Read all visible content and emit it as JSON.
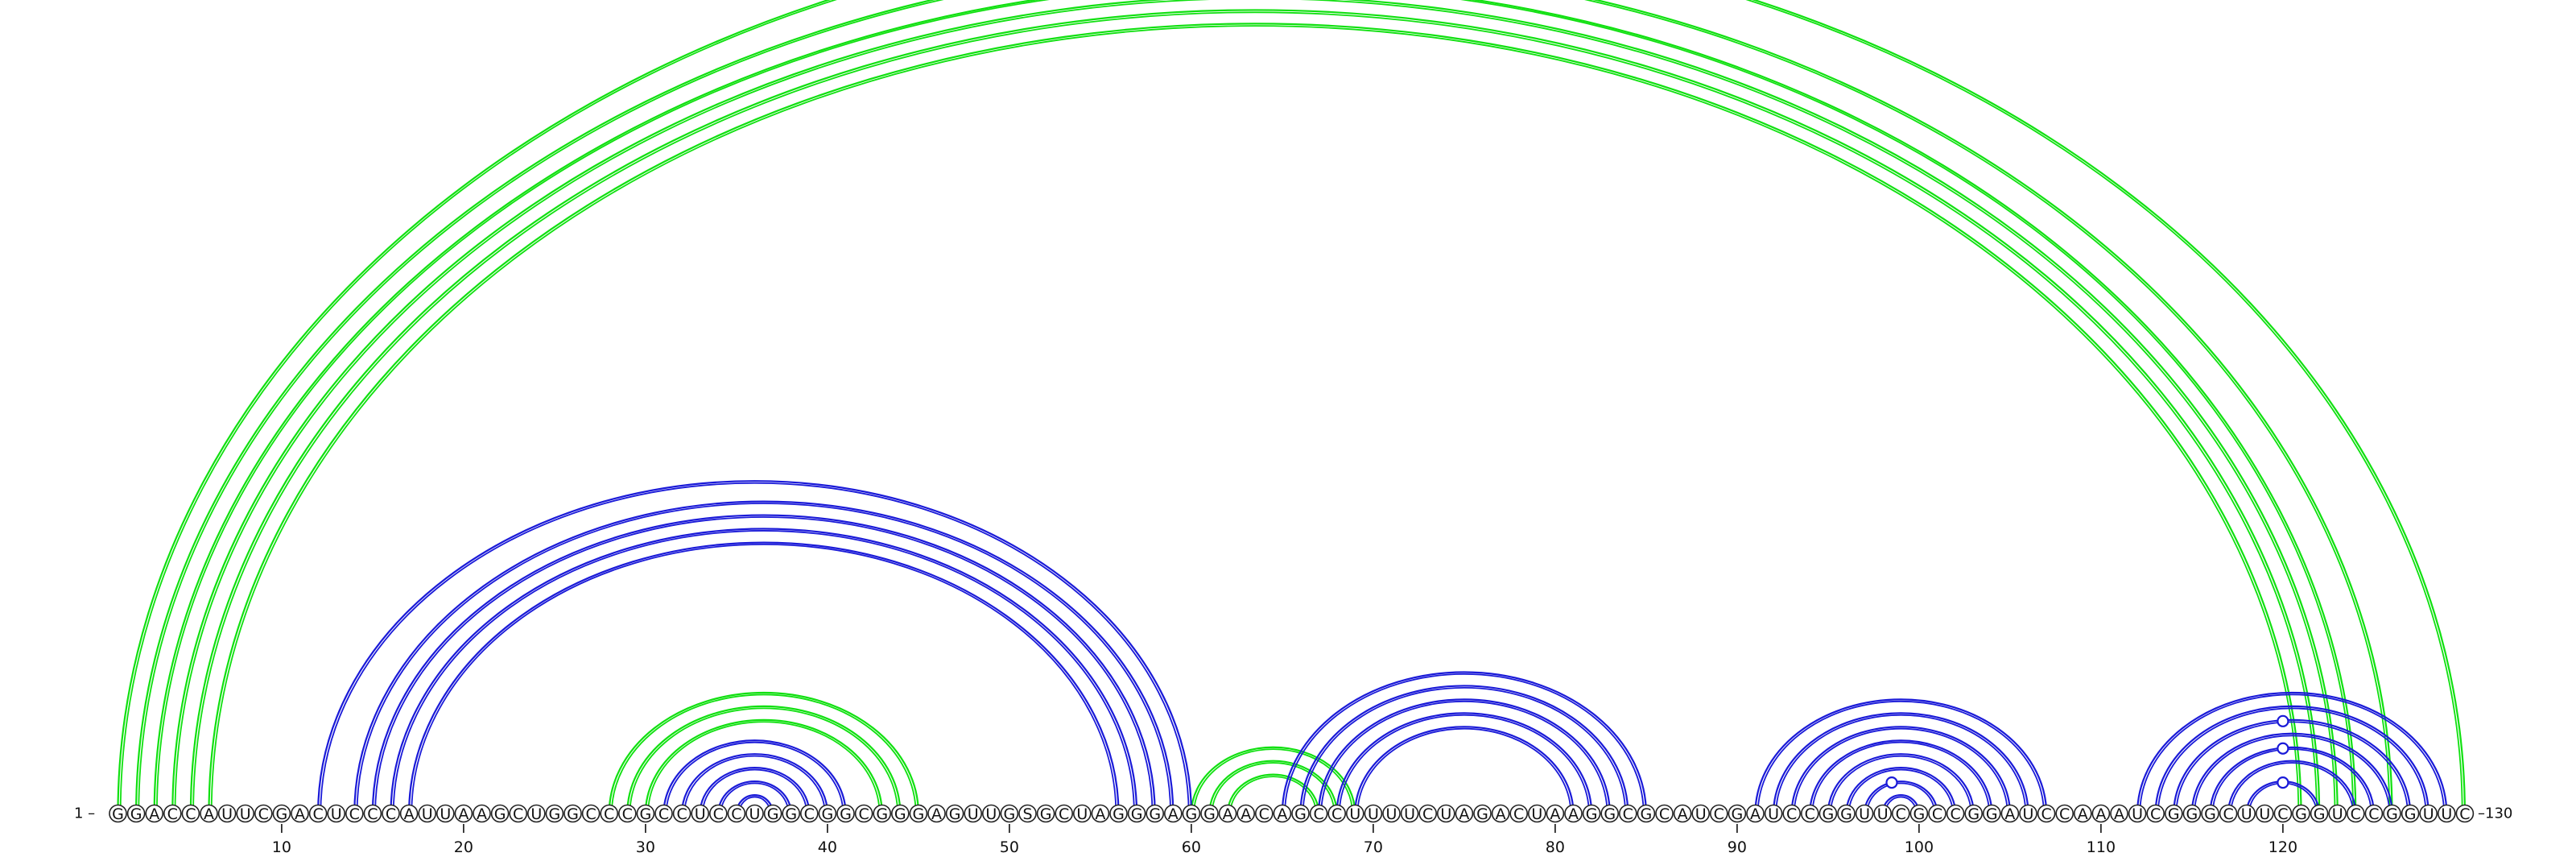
{
  "sequence": "GGACCAUUCGACUCCCAUUAAGCUGGCCCGCCUCCUGGCGGCGGGAGUUGSGCUAGGGAGGAACAGCCUUUUCUAGACUAAGGCGCAUCGAUCCGGUUCGCCGGAUCCAAAUCGGGCUUCGGUCCGGUUC",
  "start_label": "1 –",
  "end_label": "–130",
  "ticks": [
    10,
    20,
    30,
    40,
    50,
    60,
    70,
    80,
    90,
    100,
    110,
    120
  ],
  "colors": {
    "green": "#10e010",
    "blue": "#1a1ad8"
  },
  "arcs": [
    {
      "i": 1,
      "j": 130,
      "color": "green"
    },
    {
      "i": 2,
      "j": 126,
      "color": "green"
    },
    {
      "i": 3,
      "j": 124,
      "color": "green"
    },
    {
      "i": 4,
      "j": 123,
      "color": "green"
    },
    {
      "i": 5,
      "j": 122,
      "color": "green"
    },
    {
      "i": 6,
      "j": 121,
      "color": "green"
    },
    {
      "i": 28,
      "j": 45,
      "color": "green"
    },
    {
      "i": 29,
      "j": 44,
      "color": "green"
    },
    {
      "i": 30,
      "j": 43,
      "color": "green"
    },
    {
      "i": 60,
      "j": 69,
      "color": "green"
    },
    {
      "i": 61,
      "j": 68,
      "color": "green"
    },
    {
      "i": 62,
      "j": 67,
      "color": "green"
    },
    {
      "i": 12,
      "j": 60,
      "color": "blue"
    },
    {
      "i": 14,
      "j": 59,
      "color": "blue"
    },
    {
      "i": 15,
      "j": 58,
      "color": "blue"
    },
    {
      "i": 16,
      "j": 57,
      "color": "blue"
    },
    {
      "i": 17,
      "j": 56,
      "color": "blue"
    },
    {
      "i": 31,
      "j": 41,
      "color": "blue"
    },
    {
      "i": 32,
      "j": 40,
      "color": "blue"
    },
    {
      "i": 33,
      "j": 39,
      "color": "blue"
    },
    {
      "i": 34,
      "j": 38,
      "color": "blue"
    },
    {
      "i": 35,
      "j": 37,
      "color": "blue"
    },
    {
      "i": 65,
      "j": 85,
      "color": "blue"
    },
    {
      "i": 66,
      "j": 84,
      "color": "blue"
    },
    {
      "i": 67,
      "j": 83,
      "color": "blue"
    },
    {
      "i": 68,
      "j": 82,
      "color": "blue"
    },
    {
      "i": 69,
      "j": 81,
      "color": "blue"
    },
    {
      "i": 91,
      "j": 107,
      "color": "blue"
    },
    {
      "i": 92,
      "j": 106,
      "color": "blue"
    },
    {
      "i": 93,
      "j": 105,
      "color": "blue"
    },
    {
      "i": 94,
      "j": 104,
      "color": "blue"
    },
    {
      "i": 95,
      "j": 103,
      "color": "blue"
    },
    {
      "i": 96,
      "j": 102,
      "color": "blue"
    },
    {
      "i": 97,
      "j": 101,
      "color": "blue"
    },
    {
      "i": 98,
      "j": 100,
      "color": "blue"
    },
    {
      "i": 112,
      "j": 129,
      "color": "blue"
    },
    {
      "i": 113,
      "j": 128,
      "color": "blue"
    },
    {
      "i": 114,
      "j": 127,
      "color": "blue"
    },
    {
      "i": 115,
      "j": 126,
      "color": "blue"
    },
    {
      "i": 116,
      "j": 125,
      "color": "blue"
    },
    {
      "i": 117,
      "j": 124,
      "color": "blue"
    },
    {
      "i": 118,
      "j": 122,
      "color": "blue"
    }
  ],
  "markers": [
    {
      "pos": 65.5,
      "arc_i": 1,
      "arc_j": 130,
      "color": "green"
    },
    {
      "pos": 98.5,
      "arc_i": 97,
      "arc_j": 101,
      "color": "blue"
    },
    {
      "pos": 120,
      "arc_i": 114,
      "arc_j": 127,
      "color": "blue"
    },
    {
      "pos": 120,
      "arc_i": 116,
      "arc_j": 125,
      "color": "blue"
    },
    {
      "pos": 120,
      "arc_i": 118,
      "arc_j": 122,
      "color": "blue"
    }
  ]
}
